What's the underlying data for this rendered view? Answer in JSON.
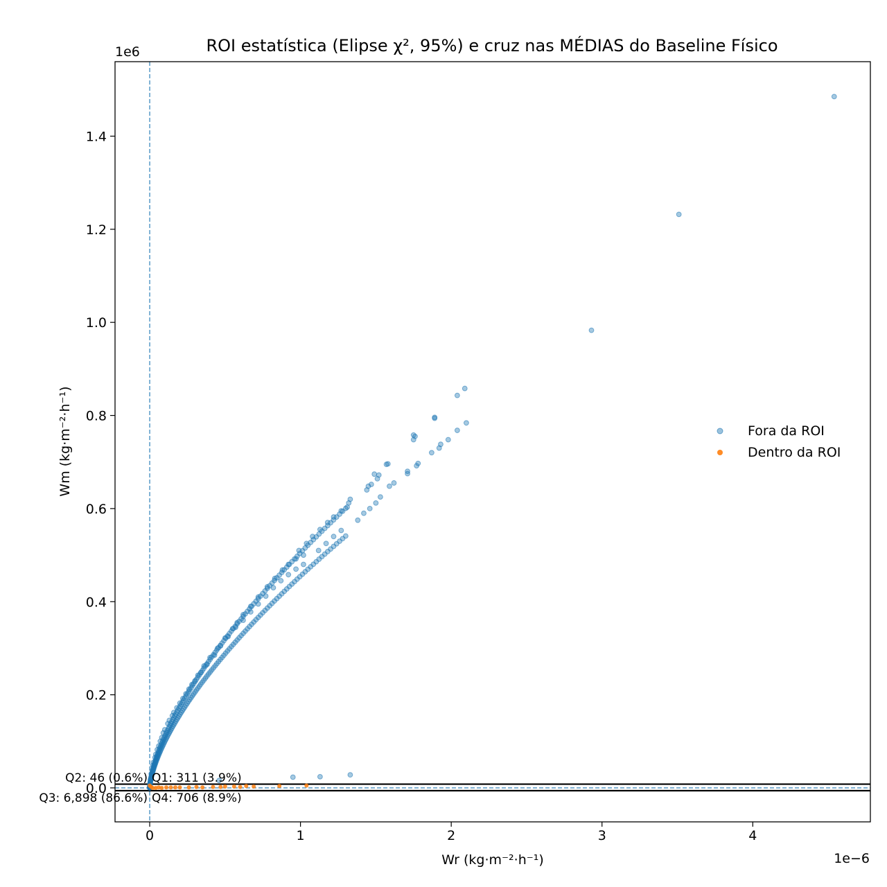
{
  "chart_data": {
    "type": "scatter",
    "title": "ROI estatística (Elipse χ², 95%) e cruz nas MÉDIAS do Baseline Físico",
    "xlabel": "Wr (kg·m⁻²·h⁻¹)",
    "ylabel": "Wm (kg·m⁻²·h⁻¹)",
    "x_scale_label": "1e−6",
    "y_scale_label": "1e6",
    "x_scale": 1e-06,
    "y_scale": 1000000.0,
    "xlim": [
      -0.23,
      4.78
    ],
    "ylim": [
      -0.073,
      1.56
    ],
    "x_ticks": [
      0,
      1,
      2,
      3,
      4
    ],
    "x_tick_labels": [
      "0",
      "1",
      "2",
      "3",
      "4"
    ],
    "y_ticks": [
      0.0,
      0.2,
      0.4,
      0.6,
      0.8,
      1.0,
      1.2,
      1.4
    ],
    "y_tick_labels": [
      "0.0",
      "0.2",
      "0.4",
      "0.6",
      "0.8",
      "1.0",
      "1.2",
      "1.4"
    ],
    "grid": false,
    "legend_position": "center-right",
    "colors": {
      "outside": "#1f77b4",
      "inside": "#ff7f0e",
      "cross": "#1f77b4",
      "ellipse": "#000000"
    },
    "mean_cross": {
      "x": 0.0,
      "y": 0.0
    },
    "ellipse_band": {
      "y_top": 0.008,
      "y_bottom": -0.006
    },
    "quadrant_labels": [
      {
        "text": "Q2: 46 (0.6%)",
        "quadrant": "Q2"
      },
      {
        "text": "Q1: 311 (3.9%)",
        "quadrant": "Q1"
      },
      {
        "text": "Q3: 6,898 (86.6%)",
        "quadrant": "Q3"
      },
      {
        "text": "Q4: 706 (8.9%)",
        "quadrant": "Q4"
      }
    ],
    "series": [
      {
        "name": "Fora da ROI",
        "color": "#1f77b4",
        "points": [
          [
            4.54,
            1.485
          ],
          [
            3.51,
            1.232
          ],
          [
            2.93,
            0.983
          ],
          [
            2.09,
            0.858
          ],
          [
            2.04,
            0.843
          ],
          [
            2.1,
            0.784
          ],
          [
            2.04,
            0.768
          ],
          [
            1.89,
            0.796
          ],
          [
            1.89,
            0.794
          ],
          [
            1.98,
            0.748
          ],
          [
            1.93,
            0.738
          ],
          [
            1.92,
            0.73
          ],
          [
            1.87,
            0.72
          ],
          [
            1.75,
            0.758
          ],
          [
            1.76,
            0.755
          ],
          [
            1.75,
            0.748
          ],
          [
            1.78,
            0.697
          ],
          [
            1.77,
            0.692
          ],
          [
            1.71,
            0.68
          ],
          [
            1.71,
            0.675
          ],
          [
            1.58,
            0.696
          ],
          [
            1.57,
            0.695
          ],
          [
            1.62,
            0.655
          ],
          [
            1.59,
            0.648
          ],
          [
            1.49,
            0.674
          ],
          [
            1.52,
            0.672
          ],
          [
            1.51,
            0.664
          ],
          [
            1.47,
            0.652
          ],
          [
            1.45,
            0.648
          ],
          [
            1.44,
            0.64
          ],
          [
            1.53,
            0.625
          ],
          [
            1.5,
            0.612
          ],
          [
            1.46,
            0.6
          ],
          [
            1.42,
            0.59
          ],
          [
            1.38,
            0.575
          ],
          [
            1.33,
            0.62
          ],
          [
            1.32,
            0.612
          ],
          [
            1.31,
            0.603
          ],
          [
            1.27,
            0.595
          ],
          [
            1.22,
            0.582
          ],
          [
            1.18,
            0.57
          ],
          [
            1.13,
            0.555
          ],
          [
            1.08,
            0.54
          ],
          [
            1.27,
            0.553
          ],
          [
            1.22,
            0.54
          ],
          [
            1.17,
            0.525
          ],
          [
            1.12,
            0.51
          ],
          [
            1.04,
            0.525
          ],
          [
            0.99,
            0.51
          ],
          [
            1.02,
            0.5
          ],
          [
            0.97,
            0.492
          ],
          [
            0.92,
            0.48
          ],
          [
            0.88,
            0.468
          ],
          [
            0.83,
            0.45
          ],
          [
            0.78,
            0.432
          ],
          [
            1.02,
            0.48
          ],
          [
            0.97,
            0.47
          ],
          [
            0.92,
            0.458
          ],
          [
            0.87,
            0.445
          ],
          [
            0.82,
            0.43
          ],
          [
            0.77,
            0.412
          ],
          [
            0.72,
            0.395
          ],
          [
            0.67,
            0.378
          ],
          [
            0.72,
            0.41
          ],
          [
            0.67,
            0.39
          ],
          [
            0.62,
            0.372
          ],
          [
            0.58,
            0.355
          ],
          [
            0.62,
            0.36
          ],
          [
            0.57,
            0.345
          ],
          [
            0.52,
            0.325
          ],
          [
            0.47,
            0.305
          ],
          [
            0.43,
            0.285
          ],
          [
            0.38,
            0.265
          ],
          [
            0.34,
            0.248
          ],
          [
            0.3,
            0.23
          ],
          [
            0.26,
            0.212
          ],
          [
            0.22,
            0.192
          ],
          [
            0.18,
            0.172
          ],
          [
            0.15,
            0.155
          ],
          [
            0.12,
            0.138
          ],
          [
            0.09,
            0.118
          ],
          [
            0.07,
            0.1
          ],
          [
            0.05,
            0.082
          ],
          [
            0.035,
            0.065
          ],
          [
            0.02,
            0.048
          ],
          [
            0.01,
            0.03
          ],
          [
            0.005,
            0.018
          ],
          [
            0.55,
            0.342
          ],
          [
            0.5,
            0.322
          ],
          [
            0.45,
            0.3
          ],
          [
            0.4,
            0.28
          ],
          [
            0.36,
            0.262
          ],
          [
            0.32,
            0.242
          ],
          [
            0.28,
            0.222
          ],
          [
            0.24,
            0.202
          ],
          [
            0.2,
            0.182
          ],
          [
            0.16,
            0.162
          ],
          [
            0.13,
            0.145
          ],
          [
            0.1,
            0.125
          ],
          [
            0.08,
            0.108
          ],
          [
            0.06,
            0.09
          ],
          [
            0.04,
            0.072
          ],
          [
            0.025,
            0.055
          ],
          [
            1.33,
            0.028
          ],
          [
            1.13,
            0.024
          ],
          [
            0.95,
            0.023
          ],
          [
            0.46,
            0.016
          ]
        ]
      },
      {
        "name": "Dentro da ROI",
        "color": "#ff7f0e",
        "points": [
          [
            1.04,
            0.005
          ],
          [
            0.86,
            0.004
          ],
          [
            0.69,
            0.003
          ],
          [
            0.64,
            0.004
          ],
          [
            0.6,
            0.002
          ],
          [
            0.56,
            0.003
          ],
          [
            0.5,
            0.003
          ],
          [
            0.47,
            0.002
          ],
          [
            0.42,
            0.002
          ],
          [
            0.35,
            0.001
          ],
          [
            0.31,
            0.002
          ],
          [
            0.26,
            0.001
          ],
          [
            0.2,
            0.001
          ],
          [
            0.17,
            0.001
          ],
          [
            0.14,
            0.001
          ],
          [
            0.11,
            0.001
          ],
          [
            0.08,
            0.0
          ],
          [
            0.06,
            0.001
          ],
          [
            0.04,
            0.0
          ],
          [
            0.02,
            0.0
          ],
          [
            0.0,
            0.005
          ],
          [
            0.01,
            0.002
          ]
        ]
      }
    ]
  }
}
